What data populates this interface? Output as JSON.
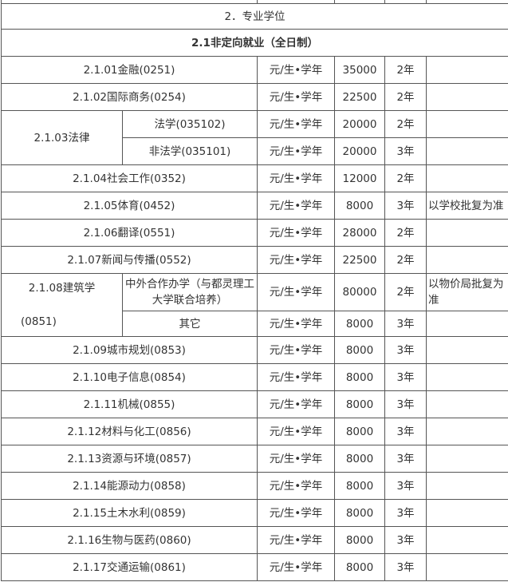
{
  "section_title": "2．专业学位",
  "subsection_title": "2.1非定向就业（全日制）",
  "rows": [
    {
      "name": "2.1.01金融(0251)",
      "unit": "元/生•学年",
      "fee": "35000",
      "years": "2年",
      "note": ""
    },
    {
      "name": "2.1.02国际商务(0254)",
      "unit": "元/生•学年",
      "fee": "22500",
      "years": "2年",
      "note": ""
    },
    {
      "name": "2.1.03法律",
      "sub": [
        {
          "name": "法学(035102)",
          "unit": "元/生•学年",
          "fee": "20000",
          "years": "2年",
          "note": ""
        },
        {
          "name": "非法学(035101)",
          "unit": "元/生•学年",
          "fee": "20000",
          "years": "3年",
          "note": ""
        }
      ]
    },
    {
      "name": "2.1.04社会工作(0352)",
      "unit": "元/生•学年",
      "fee": "12000",
      "years": "2年",
      "note": ""
    },
    {
      "name": "2.1.05体育(0452)",
      "unit": "元/生•学年",
      "fee": "8000",
      "years": "3年",
      "note": "以学校批复为准"
    },
    {
      "name": "2.1.06翻译(0551)",
      "unit": "元/生•学年",
      "fee": "28000",
      "years": "2年",
      "note": ""
    },
    {
      "name": "2.1.07新闻与传播(0552)",
      "unit": "元/生•学年",
      "fee": "22500",
      "years": "2年",
      "note": ""
    },
    {
      "name": "2.1.08建筑学",
      "code": "(0851)",
      "sub": [
        {
          "name": "中外合作办学（与都灵理工大学联合培养）",
          "unit": "元/生•学年",
          "fee": "80000",
          "years": "2年",
          "note": "以物价局批复为准"
        },
        {
          "name": "其它",
          "unit": "元/生•学年",
          "fee": "8000",
          "years": "3年",
          "note": ""
        }
      ]
    },
    {
      "name": "2.1.09城市规划(0853)",
      "unit": "元/生•学年",
      "fee": "8000",
      "years": "3年",
      "note": ""
    },
    {
      "name": "2.1.10电子信息(0854)",
      "unit": "元/生•学年",
      "fee": "8000",
      "years": "3年",
      "note": ""
    },
    {
      "name": "2.1.11机械(0855)",
      "unit": "元/生•学年",
      "fee": "8000",
      "years": "3年",
      "note": ""
    },
    {
      "name": "2.1.12材料与化工(0856)",
      "unit": "元/生•学年",
      "fee": "8000",
      "years": "3年",
      "note": ""
    },
    {
      "name": "2.1.13资源与环境(0857)",
      "unit": "元/生•学年",
      "fee": "8000",
      "years": "3年",
      "note": ""
    },
    {
      "name": "2.1.14能源动力(0858)",
      "unit": "元/生•学年",
      "fee": "8000",
      "years": "3年",
      "note": ""
    },
    {
      "name": "2.1.15土木水利(0859)",
      "unit": "元/生•学年",
      "fee": "8000",
      "years": "3年",
      "note": ""
    },
    {
      "name": "2.1.16生物与医药(0860)",
      "unit": "元/生•学年",
      "fee": "8000",
      "years": "3年",
      "note": ""
    },
    {
      "name": "2.1.17交通运输(0861)",
      "unit": "元/生•学年",
      "fee": "8000",
      "years": "3年",
      "note": ""
    }
  ]
}
